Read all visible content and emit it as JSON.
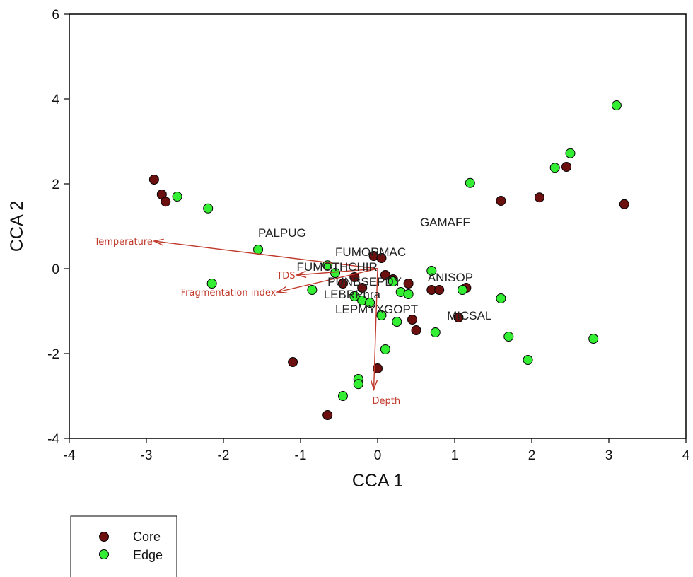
{
  "chart_data": {
    "type": "scatter",
    "xlabel": "CCA 1",
    "ylabel": "CCA 2",
    "xlim": [
      -4,
      4
    ],
    "ylim": [
      -4,
      6
    ],
    "xticks": [
      -4,
      -3,
      -2,
      -1,
      0,
      1,
      2,
      3,
      4
    ],
    "yticks": [
      -4,
      -2,
      0,
      2,
      4,
      6
    ],
    "grid": false,
    "legend": {
      "placement": "bottom-left",
      "entries": [
        "Core",
        "Edge"
      ]
    },
    "series": [
      {
        "name": "Core",
        "color": "#6b0f0f",
        "points": [
          [
            -2.9,
            2.1
          ],
          [
            -2.8,
            1.75
          ],
          [
            -2.75,
            1.58
          ],
          [
            -1.1,
            -2.2
          ],
          [
            -0.65,
            -3.45
          ],
          [
            -0.05,
            0.3
          ],
          [
            0.05,
            0.25
          ],
          [
            -0.2,
            -0.45
          ],
          [
            -0.45,
            -0.35
          ],
          [
            0.1,
            -0.15
          ],
          [
            0.4,
            -0.35
          ],
          [
            0.45,
            -1.2
          ],
          [
            0.5,
            -1.45
          ],
          [
            0.7,
            -0.5
          ],
          [
            0.8,
            -0.5
          ],
          [
            1.05,
            -1.15
          ],
          [
            1.15,
            -0.45
          ],
          [
            1.6,
            1.6
          ],
          [
            2.1,
            1.68
          ],
          [
            2.45,
            2.4
          ],
          [
            3.2,
            1.52
          ],
          [
            0.0,
            -2.35
          ],
          [
            -0.3,
            -0.2
          ],
          [
            0.2,
            -0.25
          ]
        ]
      },
      {
        "name": "Edge",
        "color": "#33ee33",
        "points": [
          [
            -2.6,
            1.7
          ],
          [
            -2.2,
            1.42
          ],
          [
            -2.15,
            -0.35
          ],
          [
            -1.55,
            0.45
          ],
          [
            -0.85,
            -0.5
          ],
          [
            -0.65,
            0.08
          ],
          [
            -0.55,
            -0.1
          ],
          [
            -0.3,
            -0.65
          ],
          [
            -0.2,
            -0.75
          ],
          [
            -0.1,
            -0.8
          ],
          [
            0.05,
            -1.1
          ],
          [
            0.1,
            -1.9
          ],
          [
            0.2,
            -0.3
          ],
          [
            0.25,
            -1.25
          ],
          [
            0.3,
            -0.55
          ],
          [
            0.4,
            -0.6
          ],
          [
            0.7,
            -0.05
          ],
          [
            0.75,
            -1.5
          ],
          [
            1.1,
            -0.5
          ],
          [
            1.2,
            2.02
          ],
          [
            1.6,
            -0.7
          ],
          [
            1.7,
            -1.6
          ],
          [
            1.95,
            -2.15
          ],
          [
            2.3,
            2.38
          ],
          [
            2.5,
            2.72
          ],
          [
            2.8,
            -1.65
          ],
          [
            3.1,
            3.85
          ],
          [
            -0.45,
            -3.0
          ],
          [
            -0.25,
            -2.6
          ],
          [
            -0.25,
            -2.72
          ]
        ]
      }
    ],
    "vectors": [
      {
        "label": "Temperature",
        "x": -2.9,
        "y": 0.65
      },
      {
        "label": "TDS",
        "x": -1.05,
        "y": -0.15
      },
      {
        "label": "Fragmentation index",
        "x": -1.3,
        "y": -0.55
      },
      {
        "label": "Depth",
        "x": -0.05,
        "y": -2.85
      }
    ],
    "species_labels": [
      {
        "text": "PALPUG",
        "x": -1.55,
        "y": 0.75
      },
      {
        "text": "GAMAFF",
        "x": 0.55,
        "y": 1.0
      },
      {
        "text": "FUMORMAC",
        "x": -0.55,
        "y": 0.3
      },
      {
        "text": "FUMOTHCHIR",
        "x": -1.05,
        "y": -0.05
      },
      {
        "text": "PUNBSEPDY",
        "x": -0.65,
        "y": -0.4
      },
      {
        "text": "ANISOP",
        "x": 0.65,
        "y": -0.3
      },
      {
        "text": "LEBRPhra",
        "x": -0.7,
        "y": -0.7
      },
      {
        "text": "LEPMYXGOPT",
        "x": -0.55,
        "y": -1.05
      },
      {
        "text": "MICSAL",
        "x": 0.9,
        "y": -1.2
      }
    ]
  }
}
